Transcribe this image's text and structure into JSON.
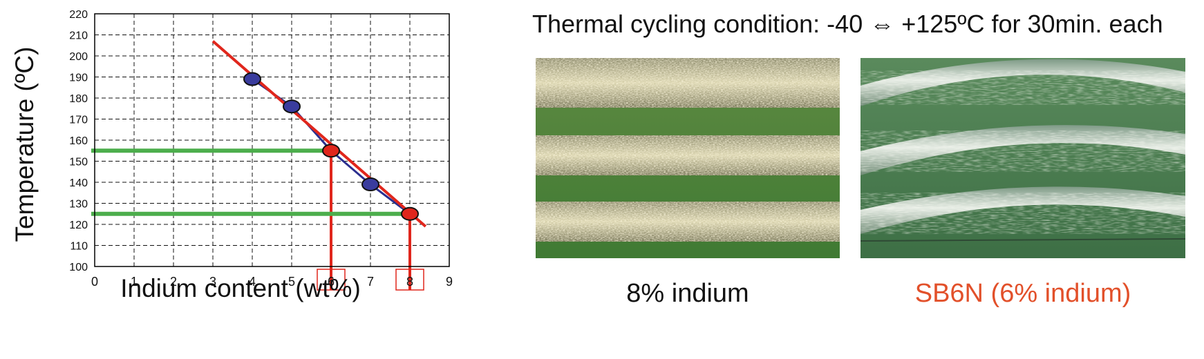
{
  "chart_data": {
    "type": "line",
    "xlabel": "Indium content (wt%)",
    "ylabel": "Temperature (ºC)",
    "xlim": [
      0,
      9
    ],
    "ylim": [
      100,
      220
    ],
    "x_ticks": [
      "0",
      "1",
      "2",
      "3",
      "4",
      "5",
      "6",
      "7",
      "8",
      "9"
    ],
    "y_ticks": [
      "100",
      "110",
      "120",
      "130",
      "140",
      "150",
      "160",
      "170",
      "180",
      "190",
      "200",
      "210",
      "220"
    ],
    "grid": true,
    "series": [
      {
        "values": [
          {
            "x": 4,
            "y": 189
          },
          {
            "x": 5,
            "y": 176
          },
          {
            "x": 6,
            "y": 155
          },
          {
            "x": 7,
            "y": 139
          },
          {
            "x": 8,
            "y": 125
          }
        ],
        "color": "#2b2f8f"
      }
    ],
    "trend_line": {
      "from": {
        "x": 3,
        "y": 207
      },
      "to": {
        "x": 8.4,
        "y": 119
      },
      "color": "#e0261c"
    },
    "highlight_points": [
      {
        "x": 6,
        "y": 155
      },
      {
        "x": 8,
        "y": 125
      }
    ],
    "highlight_color": "#e0261c",
    "guide_color": "#4cae4c",
    "highlighted_ticks": [
      "6",
      "8"
    ]
  },
  "heading": "Thermal cycling condition: -40 ⇔ +125ºC for 30min. each",
  "captions": [
    {
      "text": "8% indium",
      "color": "#111111"
    },
    {
      "text": "SB6N (6% indium)",
      "color": "#e2502a"
    }
  ]
}
